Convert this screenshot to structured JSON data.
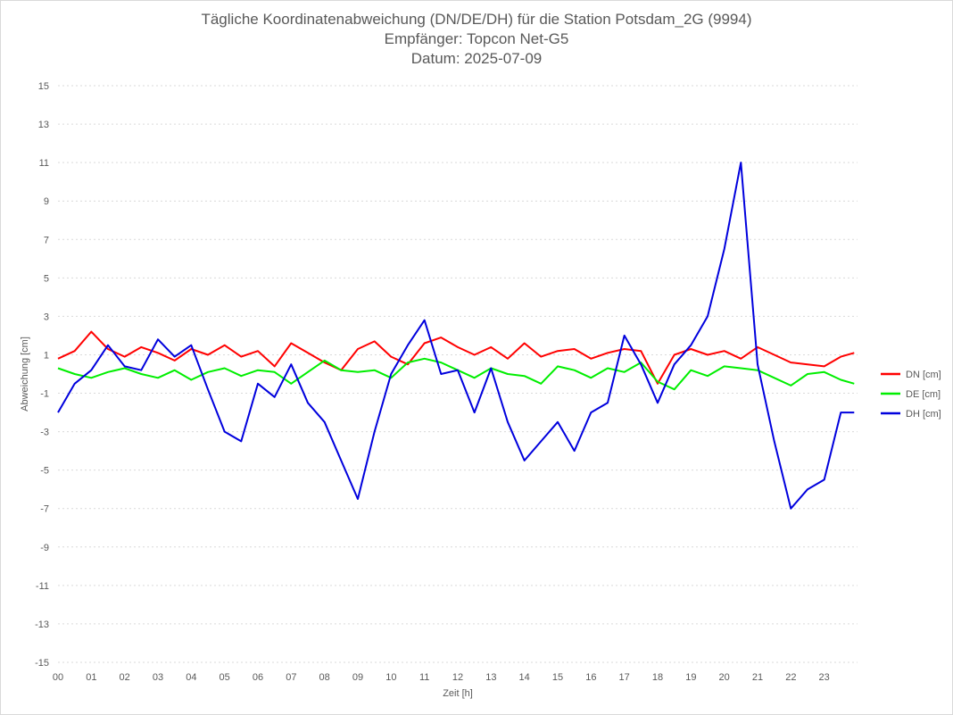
{
  "chart_data": {
    "type": "line",
    "title": "Tägliche Koordinatenabweichung (DN/DE/DH) für die Station Potsdam_2G (9994)",
    "subtitle": "Empfänger: Topcon Net-G5",
    "date_line": "Datum: 2025-07-09",
    "xlabel": "Zeit [h]",
    "ylabel": "Abweichung [cm]",
    "xlim": [
      0,
      24
    ],
    "ylim": [
      -15,
      15
    ],
    "yticks": [
      15,
      13,
      11,
      9,
      7,
      5,
      3,
      1,
      -1,
      -3,
      -5,
      -7,
      -9,
      -11,
      -13,
      -15
    ],
    "xtick_labels": [
      "00",
      "01",
      "02",
      "03",
      "04",
      "05",
      "06",
      "07",
      "08",
      "09",
      "10",
      "11",
      "12",
      "13",
      "14",
      "15",
      "16",
      "17",
      "18",
      "19",
      "20",
      "21",
      "22",
      "23"
    ],
    "grid": "horizontal-dotted",
    "legend_position": "right",
    "x": [
      0.0,
      0.5,
      1.0,
      1.5,
      2.0,
      2.5,
      3.0,
      3.5,
      4.0,
      4.5,
      5.0,
      5.5,
      6.0,
      6.5,
      7.0,
      7.5,
      8.0,
      8.5,
      9.0,
      9.5,
      10.0,
      10.5,
      11.0,
      11.5,
      12.0,
      12.5,
      13.0,
      13.5,
      14.0,
      14.5,
      15.0,
      15.5,
      16.0,
      16.5,
      17.0,
      17.5,
      18.0,
      18.5,
      19.0,
      19.5,
      20.0,
      20.5,
      21.0,
      21.5,
      22.0,
      22.5,
      23.0,
      23.5,
      23.9
    ],
    "series": [
      {
        "name": "DN [cm]",
        "color": "#ff0000",
        "values": [
          0.8,
          1.2,
          2.2,
          1.3,
          0.9,
          1.4,
          1.1,
          0.7,
          1.3,
          1.0,
          1.5,
          0.9,
          1.2,
          0.4,
          1.6,
          1.1,
          0.6,
          0.2,
          1.3,
          1.7,
          0.9,
          0.5,
          1.6,
          1.9,
          1.4,
          1.0,
          1.4,
          0.8,
          1.6,
          0.9,
          1.2,
          1.3,
          0.8,
          1.1,
          1.3,
          1.2,
          -0.5,
          1.0,
          1.3,
          1.0,
          1.2,
          0.8,
          1.4,
          1.0,
          0.6,
          0.5,
          0.4,
          0.9,
          1.1
        ]
      },
      {
        "name": "DE [cm]",
        "color": "#00ee00",
        "values": [
          0.3,
          0.0,
          -0.2,
          0.1,
          0.3,
          0.0,
          -0.2,
          0.2,
          -0.3,
          0.1,
          0.3,
          -0.1,
          0.2,
          0.1,
          -0.5,
          0.1,
          0.7,
          0.2,
          0.1,
          0.2,
          -0.2,
          0.6,
          0.8,
          0.6,
          0.2,
          -0.2,
          0.3,
          0.0,
          -0.1,
          -0.5,
          0.4,
          0.2,
          -0.2,
          0.3,
          0.1,
          0.6,
          -0.4,
          -0.8,
          0.2,
          -0.1,
          0.4,
          0.3,
          0.2,
          -0.2,
          -0.6,
          0.0,
          0.1,
          -0.3,
          -0.5
        ]
      },
      {
        "name": "DH [cm]",
        "color": "#0000dd",
        "values": [
          -2.0,
          -0.5,
          0.2,
          1.5,
          0.4,
          0.2,
          1.8,
          0.9,
          1.5,
          -0.8,
          -3.0,
          -3.5,
          -0.5,
          -1.2,
          0.5,
          -1.5,
          -2.5,
          -4.5,
          -6.5,
          -3.0,
          0.0,
          1.5,
          2.8,
          0.0,
          0.2,
          -2.0,
          0.3,
          -2.5,
          -4.5,
          -3.5,
          -2.5,
          -4.0,
          -2.0,
          -1.5,
          2.0,
          0.5,
          -1.5,
          0.5,
          1.5,
          3.0,
          6.5,
          11.0,
          0.5,
          -3.5,
          -7.0,
          -6.0,
          -5.5,
          -2.0,
          -2.0
        ]
      }
    ]
  },
  "legend": {
    "dn_label": "DN [cm]",
    "de_label": "DE [cm]",
    "dh_label": "DH [cm]"
  }
}
